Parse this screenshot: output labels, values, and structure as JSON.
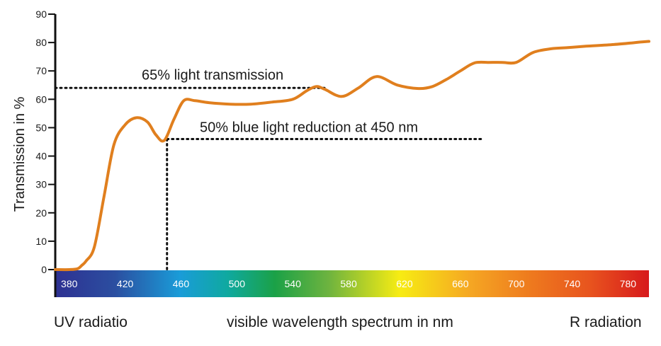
{
  "chart_data": {
    "type": "line",
    "ylabel": "Transmission in %",
    "ylim": [
      0,
      90
    ],
    "y_ticks": [
      0,
      10,
      20,
      30,
      40,
      50,
      60,
      70,
      80,
      90
    ],
    "xlim": [
      370,
      795
    ],
    "x_ticks": [
      380,
      420,
      460,
      500,
      540,
      580,
      620,
      660,
      700,
      740,
      780
    ],
    "series": [
      {
        "color": "#E07F1E",
        "x": [
          370,
          380,
          386,
          389,
          392,
          398,
          405,
          412,
          420,
          428,
          436,
          442,
          448,
          455,
          462,
          470,
          480,
          495,
          510,
          525,
          540,
          550,
          557,
          563,
          575,
          587,
          600,
          615,
          630,
          640,
          650,
          660,
          670,
          680,
          690,
          700,
          712,
          725,
          737,
          750,
          770,
          790,
          795
        ],
        "y": [
          0,
          0,
          0.3,
          1.5,
          3,
          8,
          26,
          44,
          51,
          53.5,
          52,
          47.5,
          45.5,
          53,
          59.5,
          59.5,
          58.8,
          58.3,
          58.3,
          59,
          60,
          63,
          64.5,
          63.5,
          61,
          64,
          68,
          65,
          63.8,
          64.5,
          67,
          70,
          72.8,
          73,
          73,
          73,
          76.5,
          77.8,
          78.2,
          78.7,
          79.3,
          80.2,
          80.4
        ]
      }
    ],
    "annotations": [
      {
        "text": "65% light transmission",
        "y": 64
      },
      {
        "text": "50% blue light reduction at 450 nm",
        "x": 450,
        "y": 46
      }
    ],
    "grid": false,
    "legend": "none"
  },
  "bottom_labels": {
    "uv": "UV radiatio",
    "visible": "visible wavelength spectrum in nm",
    "ir": "R radiation"
  },
  "colors": {
    "curve": "#E07F1E",
    "axis": "#111111",
    "text": "#1a1a1a",
    "spectrum": [
      "#2E3192",
      "#2B4EA0",
      "#1A9CD8",
      "#0FA9A0",
      "#1BA147",
      "#6DB33F",
      "#F7EC13",
      "#F5A623",
      "#EE7A1E",
      "#E8541E",
      "#D7191C"
    ]
  }
}
